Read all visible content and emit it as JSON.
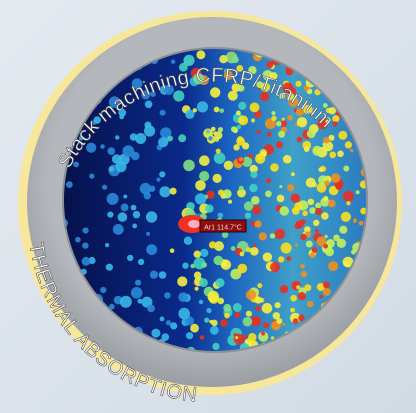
{
  "badge": {
    "top_text": "Stack machining CFRP/Titanium",
    "bottom_text": "THERMAL ABSORPTION",
    "hotspot_label": "Ar1 114.7°C"
  }
}
